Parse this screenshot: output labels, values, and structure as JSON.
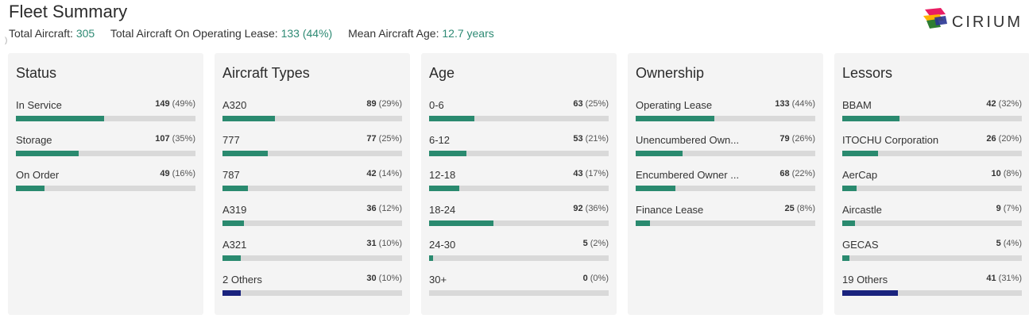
{
  "header": {
    "title": "Fleet Summary",
    "stats": [
      {
        "label": "Total Aircraft:",
        "value": "305"
      },
      {
        "label": "Total Aircraft On Operating Lease:",
        "value": "133 (44%)"
      },
      {
        "label": "Mean Aircraft Age:",
        "value": "12.7 years"
      }
    ]
  },
  "logo": {
    "text": "CIRIUM",
    "colors": [
      "#e91e63",
      "#ffb300",
      "#2e7d32",
      "#283593"
    ]
  },
  "cards": [
    {
      "title": "Status",
      "rows": [
        {
          "label": "In Service",
          "count": "149",
          "pct": "(49%)",
          "fraction": 0.49,
          "dark": false
        },
        {
          "label": "Storage",
          "count": "107",
          "pct": "(35%)",
          "fraction": 0.35,
          "dark": false
        },
        {
          "label": "On Order",
          "count": "49",
          "pct": "(16%)",
          "fraction": 0.16,
          "dark": false
        }
      ]
    },
    {
      "title": "Aircraft Types",
      "rows": [
        {
          "label": "A320",
          "count": "89",
          "pct": "(29%)",
          "fraction": 0.29,
          "dark": false
        },
        {
          "label": "777",
          "count": "77",
          "pct": "(25%)",
          "fraction": 0.25,
          "dark": false
        },
        {
          "label": "787",
          "count": "42",
          "pct": "(14%)",
          "fraction": 0.14,
          "dark": false
        },
        {
          "label": "A319",
          "count": "36",
          "pct": "(12%)",
          "fraction": 0.12,
          "dark": false
        },
        {
          "label": "A321",
          "count": "31",
          "pct": "(10%)",
          "fraction": 0.1,
          "dark": false
        },
        {
          "label": "2 Others",
          "count": "30",
          "pct": "(10%)",
          "fraction": 0.1,
          "dark": true
        }
      ]
    },
    {
      "title": "Age",
      "rows": [
        {
          "label": "0-6",
          "count": "63",
          "pct": "(25%)",
          "fraction": 0.25,
          "dark": false
        },
        {
          "label": "6-12",
          "count": "53",
          "pct": "(21%)",
          "fraction": 0.21,
          "dark": false
        },
        {
          "label": "12-18",
          "count": "43",
          "pct": "(17%)",
          "fraction": 0.17,
          "dark": false
        },
        {
          "label": "18-24",
          "count": "92",
          "pct": "(36%)",
          "fraction": 0.36,
          "dark": false
        },
        {
          "label": "24-30",
          "count": "5",
          "pct": "(2%)",
          "fraction": 0.02,
          "dark": false
        },
        {
          "label": "30+",
          "count": "0",
          "pct": "(0%)",
          "fraction": 0.0,
          "dark": false
        }
      ]
    },
    {
      "title": "Ownership",
      "rows": [
        {
          "label": "Operating Lease",
          "count": "133",
          "pct": "(44%)",
          "fraction": 0.44,
          "dark": false
        },
        {
          "label": "Unencumbered Own...",
          "count": "79",
          "pct": "(26%)",
          "fraction": 0.26,
          "dark": false
        },
        {
          "label": "Encumbered Owner ...",
          "count": "68",
          "pct": "(22%)",
          "fraction": 0.22,
          "dark": false
        },
        {
          "label": "Finance Lease",
          "count": "25",
          "pct": "(8%)",
          "fraction": 0.08,
          "dark": false
        }
      ]
    },
    {
      "title": "Lessors",
      "rows": [
        {
          "label": "BBAM",
          "count": "42",
          "pct": "(32%)",
          "fraction": 0.32,
          "dark": false
        },
        {
          "label": "ITOCHU Corporation",
          "count": "26",
          "pct": "(20%)",
          "fraction": 0.2,
          "dark": false
        },
        {
          "label": "AerCap",
          "count": "10",
          "pct": "(8%)",
          "fraction": 0.08,
          "dark": false
        },
        {
          "label": "Aircastle",
          "count": "9",
          "pct": "(7%)",
          "fraction": 0.07,
          "dark": false
        },
        {
          "label": "GECAS",
          "count": "5",
          "pct": "(4%)",
          "fraction": 0.04,
          "dark": false
        },
        {
          "label": "19 Others",
          "count": "41",
          "pct": "(31%)",
          "fraction": 0.31,
          "dark": true
        }
      ]
    }
  ]
}
